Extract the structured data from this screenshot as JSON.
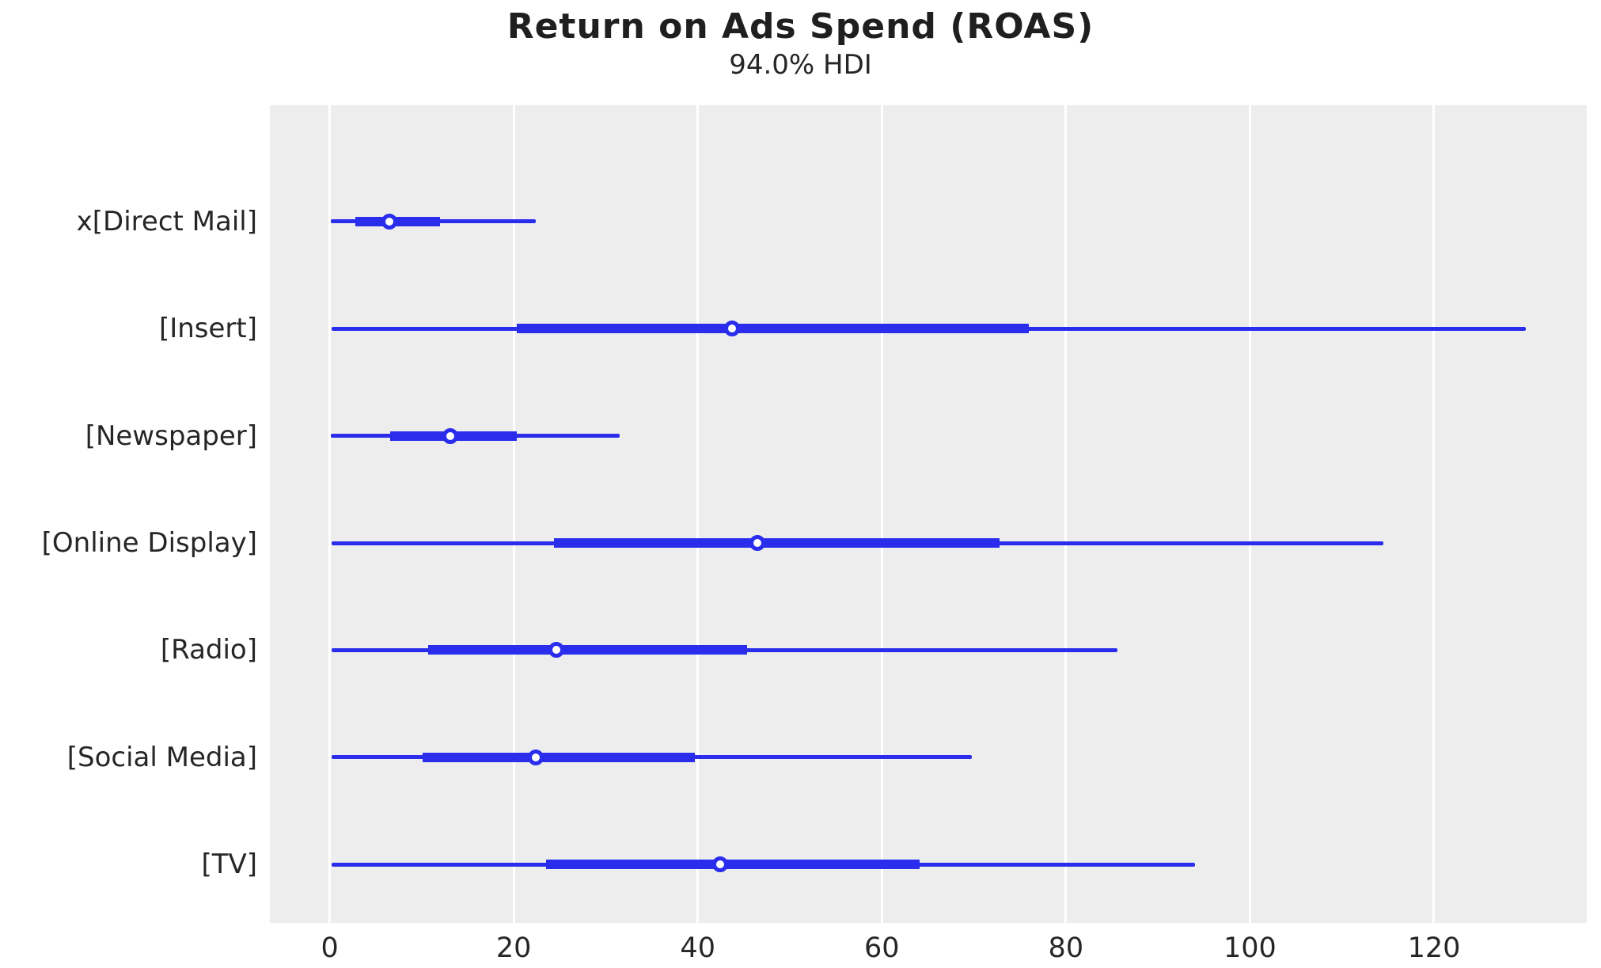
{
  "chart_data": {
    "type": "forest",
    "title": "Return on Ads Spend (ROAS)",
    "subtitle": "94.0% HDI",
    "xlabel": "",
    "ylabel": "",
    "xticks": [
      0,
      20,
      40,
      60,
      80,
      100,
      120
    ],
    "xlim": [
      -6.5,
      136.6
    ],
    "grid": "vertical-white-on-gray",
    "legend": "none",
    "rows": [
      {
        "label": "x[Direct Mail]",
        "hdi_low": 0.1,
        "q_low": 2.8,
        "median": 6.5,
        "q_high": 12.0,
        "hdi_high": 22.4
      },
      {
        "label": "[Insert]",
        "hdi_low": 0.2,
        "q_low": 20.3,
        "median": 43.7,
        "q_high": 76.0,
        "hdi_high": 130.0
      },
      {
        "label": "[Newspaper]",
        "hdi_low": 0.1,
        "q_low": 6.6,
        "median": 13.1,
        "q_high": 20.3,
        "hdi_high": 31.5
      },
      {
        "label": "[Online Display]",
        "hdi_low": 0.2,
        "q_low": 24.4,
        "median": 46.5,
        "q_high": 72.8,
        "hdi_high": 114.5
      },
      {
        "label": "[Radio]",
        "hdi_low": 0.2,
        "q_low": 10.7,
        "median": 24.6,
        "q_high": 45.4,
        "hdi_high": 85.6
      },
      {
        "label": "[Social Media]",
        "hdi_low": 0.2,
        "q_low": 10.1,
        "median": 22.4,
        "q_high": 39.7,
        "hdi_high": 69.8
      },
      {
        "label": "[TV]",
        "hdi_low": 0.2,
        "q_low": 23.5,
        "median": 42.4,
        "q_high": 64.1,
        "hdi_high": 94.0
      }
    ],
    "row_layout": {
      "first_center_frac": 0.1423,
      "step_frac": 0.13102
    },
    "colors": {
      "interval_line": "#2a2eec",
      "marker_fill": "#ffffff",
      "marker_edge": "#2a2eec",
      "plot_background": "#ededed",
      "grid_line": "#ffffff",
      "text": "#262626"
    }
  }
}
